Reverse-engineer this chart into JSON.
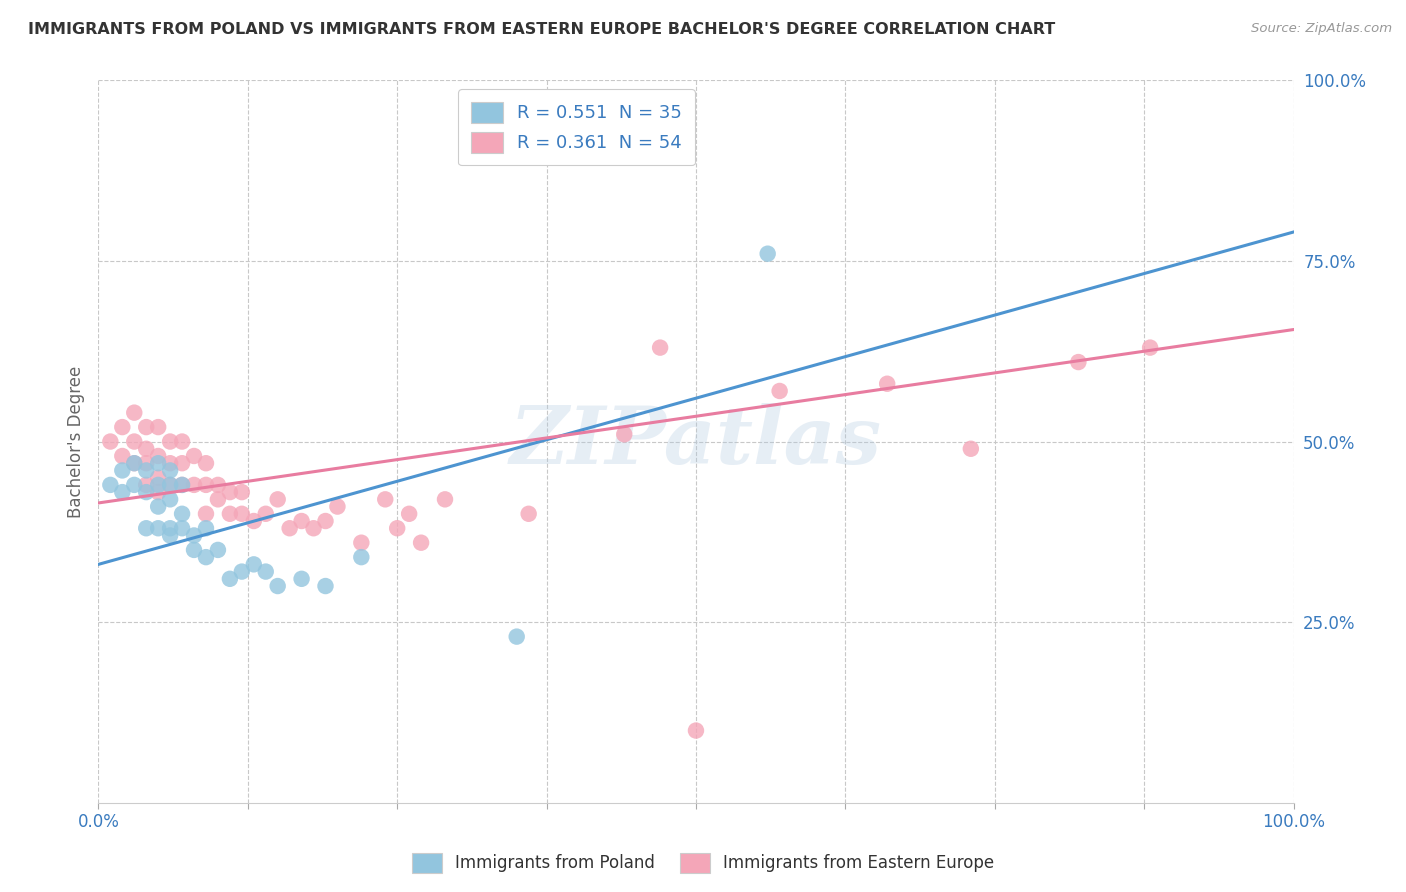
{
  "title": "IMMIGRANTS FROM POLAND VS IMMIGRANTS FROM EASTERN EUROPE BACHELOR'S DEGREE CORRELATION CHART",
  "source": "Source: ZipAtlas.com",
  "ylabel": "Bachelor's Degree",
  "xlim": [
    0.0,
    1.0
  ],
  "ylim": [
    0.0,
    1.0
  ],
  "xticks": [
    0.0,
    0.125,
    0.25,
    0.375,
    0.5,
    0.625,
    0.75,
    0.875,
    1.0
  ],
  "ytick_labels": [
    "25.0%",
    "50.0%",
    "75.0%",
    "100.0%"
  ],
  "yticks": [
    0.25,
    0.5,
    0.75,
    1.0
  ],
  "legend1_label": "R = 0.551  N = 35",
  "legend2_label": "R = 0.361  N = 54",
  "blue_color": "#92c5de",
  "pink_color": "#f4a6b8",
  "blue_line_color": "#4d94d0",
  "pink_line_color": "#e87ca0",
  "watermark": "ZIPatlas",
  "background_color": "#ffffff",
  "grid_color": "#c8c8c8",
  "title_color": "#333333",
  "axis_label_color": "#3a7bbf",
  "legend_text_color": "#3a7bbf",
  "blue_scatter_x": [
    0.01,
    0.02,
    0.02,
    0.03,
    0.03,
    0.04,
    0.04,
    0.04,
    0.05,
    0.05,
    0.05,
    0.05,
    0.06,
    0.06,
    0.06,
    0.06,
    0.06,
    0.07,
    0.07,
    0.07,
    0.08,
    0.08,
    0.09,
    0.09,
    0.1,
    0.11,
    0.12,
    0.13,
    0.14,
    0.15,
    0.17,
    0.19,
    0.22,
    0.35,
    0.56
  ],
  "blue_scatter_y": [
    0.44,
    0.46,
    0.43,
    0.47,
    0.44,
    0.46,
    0.43,
    0.38,
    0.47,
    0.44,
    0.41,
    0.38,
    0.46,
    0.44,
    0.42,
    0.38,
    0.37,
    0.44,
    0.4,
    0.38,
    0.37,
    0.35,
    0.38,
    0.34,
    0.35,
    0.31,
    0.32,
    0.33,
    0.32,
    0.3,
    0.31,
    0.3,
    0.34,
    0.23,
    0.76
  ],
  "pink_scatter_x": [
    0.01,
    0.02,
    0.02,
    0.03,
    0.03,
    0.03,
    0.04,
    0.04,
    0.04,
    0.04,
    0.05,
    0.05,
    0.05,
    0.05,
    0.06,
    0.06,
    0.06,
    0.07,
    0.07,
    0.07,
    0.08,
    0.08,
    0.09,
    0.09,
    0.09,
    0.1,
    0.1,
    0.11,
    0.11,
    0.12,
    0.12,
    0.13,
    0.14,
    0.15,
    0.16,
    0.17,
    0.18,
    0.19,
    0.2,
    0.22,
    0.24,
    0.25,
    0.26,
    0.27,
    0.29,
    0.36,
    0.44,
    0.47,
    0.57,
    0.66,
    0.73,
    0.82,
    0.88,
    0.5
  ],
  "pink_scatter_y": [
    0.5,
    0.52,
    0.48,
    0.54,
    0.5,
    0.47,
    0.52,
    0.49,
    0.47,
    0.44,
    0.52,
    0.48,
    0.45,
    0.43,
    0.5,
    0.47,
    0.44,
    0.5,
    0.47,
    0.44,
    0.48,
    0.44,
    0.47,
    0.44,
    0.4,
    0.44,
    0.42,
    0.43,
    0.4,
    0.43,
    0.4,
    0.39,
    0.4,
    0.42,
    0.38,
    0.39,
    0.38,
    0.39,
    0.41,
    0.36,
    0.42,
    0.38,
    0.4,
    0.36,
    0.42,
    0.4,
    0.51,
    0.63,
    0.57,
    0.58,
    0.49,
    0.61,
    0.63,
    0.1
  ],
  "blue_line_x0": 0.0,
  "blue_line_y0": 0.33,
  "blue_line_x1": 1.0,
  "blue_line_y1": 0.79,
  "pink_line_x0": 0.0,
  "pink_line_y0": 0.415,
  "pink_line_x1": 1.0,
  "pink_line_y1": 0.655
}
